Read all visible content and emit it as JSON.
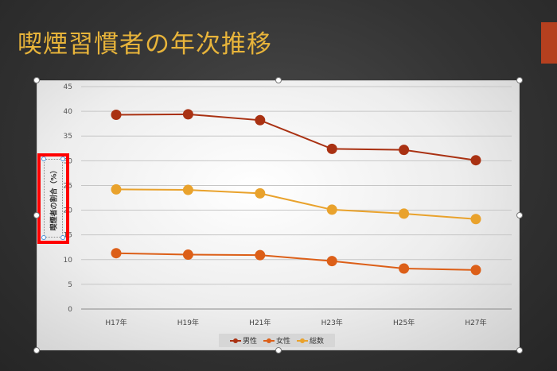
{
  "slide": {
    "title": "喫煙習慣者の年次推移",
    "accent_color": "#b5401f",
    "title_color": "#e8b43a"
  },
  "chart_data": {
    "type": "line",
    "title": "",
    "xlabel": "",
    "ylabel": "喫煙者の割合（%）",
    "categories": [
      "H17年",
      "H19年",
      "H21年",
      "H23年",
      "H25年",
      "H27年"
    ],
    "ylim": [
      0,
      45
    ],
    "yticks": [
      0,
      5,
      10,
      15,
      20,
      25,
      30,
      35,
      40,
      45
    ],
    "grid": true,
    "legend_position": "bottom",
    "series": [
      {
        "name": "男性",
        "color": "#a93112",
        "values": [
          39.3,
          39.4,
          38.2,
          32.4,
          32.2,
          30.1
        ]
      },
      {
        "name": "女性",
        "color": "#dc5f18",
        "values": [
          11.3,
          11.0,
          10.9,
          9.7,
          8.2,
          7.9
        ]
      },
      {
        "name": "総数",
        "color": "#e9a22c",
        "values": [
          24.2,
          24.1,
          23.4,
          20.1,
          19.3,
          18.2
        ]
      }
    ]
  }
}
